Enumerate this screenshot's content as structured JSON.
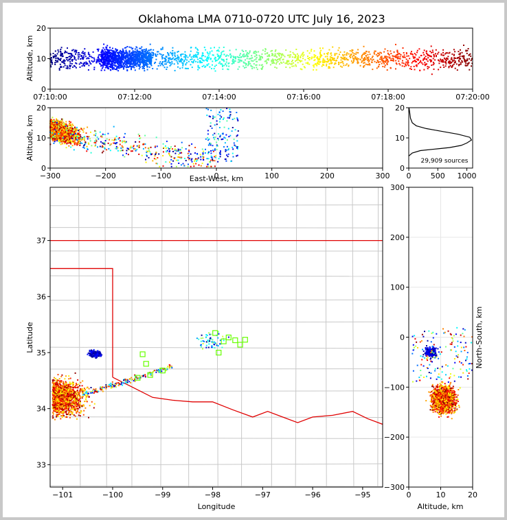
{
  "title": "Oklahoma LMA 0710-0720 UTC July 16, 2023",
  "chart_data": [
    {
      "panel": "time-altitude",
      "type": "scatter",
      "ylabel": "Altitude, km",
      "ylim": [
        0,
        20
      ],
      "yticks": [
        "0",
        "10",
        "20"
      ],
      "xlim": [
        "07:10:00",
        "07:20:00"
      ],
      "xticks": [
        "07:10:00",
        "07:12:00",
        "07:14:00",
        "07:16:00",
        "07:18:00",
        "07:20:00"
      ],
      "color_scale": "time, blue to dark red",
      "altitude_band_km": [
        5,
        15
      ]
    },
    {
      "panel": "east-west-altitude",
      "type": "scatter",
      "xlabel": "East-West, km",
      "ylabel": "Altitude, km",
      "xlim": [
        -300,
        300
      ],
      "ylim": [
        0,
        20
      ],
      "xticks": [
        "−300",
        "−200",
        "−100",
        "0",
        "100",
        "200",
        "300"
      ],
      "yticks": [
        "0",
        "10",
        "20"
      ],
      "grid": true,
      "main_cluster_km": [
        -300,
        -180
      ]
    },
    {
      "panel": "altitude-histogram",
      "type": "line",
      "xlim": [
        0,
        1100
      ],
      "ylim": [
        0,
        20
      ],
      "xticks": [
        "0",
        "500",
        "1000"
      ],
      "yticks": [
        "0",
        "10",
        "20"
      ],
      "annotation": "29,909 sources",
      "profile": [
        [
          0,
          4
        ],
        [
          60,
          5
        ],
        [
          200,
          5.8
        ],
        [
          450,
          6.3
        ],
        [
          700,
          6.8
        ],
        [
          900,
          7.5
        ],
        [
          1000,
          8.3
        ],
        [
          1080,
          9.3
        ],
        [
          1050,
          10.2
        ],
        [
          850,
          11.2
        ],
        [
          560,
          12.2
        ],
        [
          300,
          13.1
        ],
        [
          130,
          14
        ],
        [
          60,
          15
        ],
        [
          30,
          16.5
        ],
        [
          15,
          18.5
        ],
        [
          5,
          20
        ]
      ]
    },
    {
      "panel": "plan-view-map",
      "type": "scatter",
      "xlabel": "Longitude",
      "ylabel": "Latitude",
      "xlim": [
        -101.25,
        -94.6
      ],
      "ylim": [
        32.6,
        37.95
      ],
      "xticks": [
        "−101",
        "−100",
        "−99",
        "−98",
        "−97",
        "−96",
        "−95"
      ],
      "yticks": [
        "33",
        "34",
        "35",
        "36",
        "37"
      ],
      "stations_lonlat": [
        [
          -97.95,
          35.35
        ],
        [
          -97.78,
          35.2
        ],
        [
          -97.68,
          35.27
        ],
        [
          -97.88,
          35.0
        ],
        [
          -97.55,
          35.22
        ],
        [
          -97.35,
          35.23
        ],
        [
          -97.45,
          35.14
        ],
        [
          -99.4,
          34.97
        ],
        [
          -99.33,
          34.8
        ],
        [
          -99.25,
          34.6
        ],
        [
          -99.0,
          34.68
        ],
        [
          -99.5,
          34.55
        ]
      ]
    },
    {
      "panel": "north-south-altitude",
      "type": "scatter",
      "xlabel": "Altitude, km",
      "ylabel": "North-South, km",
      "xlim": [
        0,
        20
      ],
      "ylim": [
        -300,
        300
      ],
      "xticks": [
        "0",
        "10",
        "20"
      ],
      "yticks": [
        "−300",
        "−200",
        "−100",
        "0",
        "100",
        "200",
        "300"
      ],
      "grid": true
    }
  ]
}
